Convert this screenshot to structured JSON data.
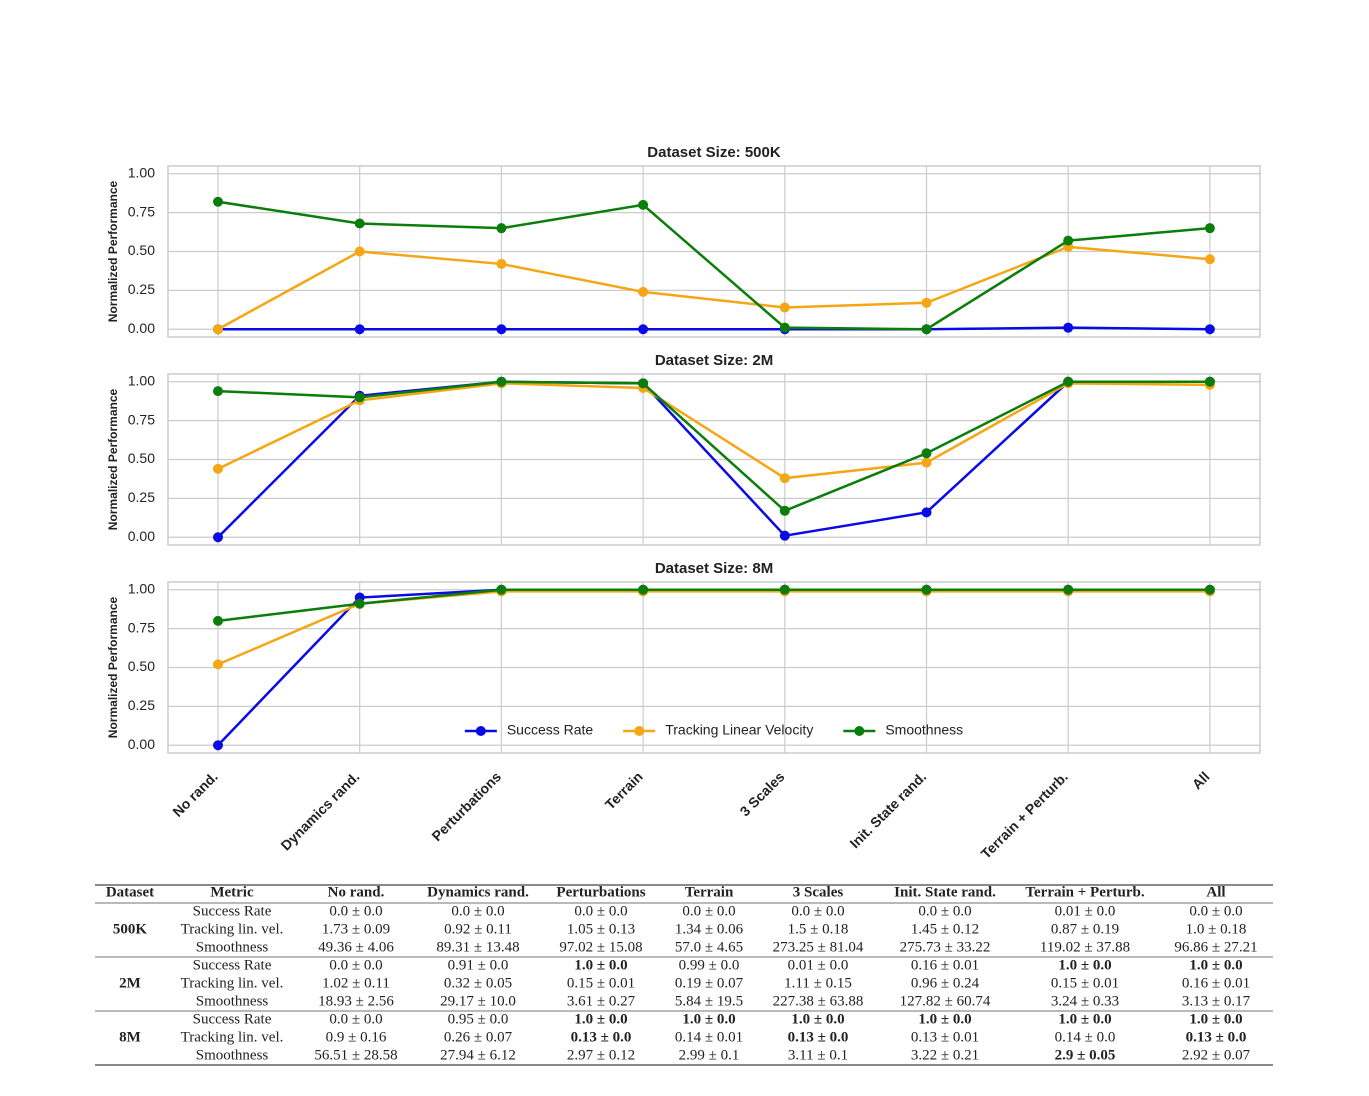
{
  "chart_data": [
    {
      "type": "line",
      "title": "Dataset Size: 500K",
      "ylabel": "Normalized Performance",
      "categories": [
        null,
        null,
        null,
        null,
        null,
        null,
        null,
        null
      ],
      "ylim": [
        -0.05,
        1.05
      ],
      "yticks": [
        {
          "value": 0,
          "label": "0.00"
        },
        {
          "value": 0.25,
          "label": "0.25"
        },
        {
          "value": 0.5,
          "label": "0.50"
        },
        {
          "value": 0.75,
          "label": "0.75"
        },
        {
          "value": 1,
          "label": "1.00"
        }
      ],
      "grid": true,
      "series": [
        {
          "name": "Success Rate",
          "color": "#0a0ae6",
          "values": [
            0,
            0,
            0,
            0,
            0,
            0,
            0.01,
            0
          ]
        },
        {
          "name": "Tracking Linear Velocity",
          "color": "#f5a614",
          "values": [
            0,
            0.5,
            0.42,
            0.24,
            0.14,
            0.17,
            0.53,
            0.45
          ]
        },
        {
          "name": "Smoothness",
          "color": "#0a7d0a",
          "values": [
            0.82,
            0.68,
            0.65,
            0.8,
            0.01,
            0,
            0.57,
            0.65
          ]
        }
      ]
    },
    {
      "type": "line",
      "title": "Dataset Size: 2M",
      "ylabel": "Normalized Performance",
      "categories": [
        null,
        null,
        null,
        null,
        null,
        null,
        null,
        null
      ],
      "ylim": [
        -0.05,
        1.05
      ],
      "yticks": [
        {
          "value": 0,
          "label": "0.00"
        },
        {
          "value": 0.25,
          "label": "0.25"
        },
        {
          "value": 0.5,
          "label": "0.50"
        },
        {
          "value": 0.75,
          "label": "0.75"
        },
        {
          "value": 1,
          "label": "1.00"
        }
      ],
      "grid": true,
      "series": [
        {
          "name": "Success Rate",
          "color": "#0a0ae6",
          "values": [
            0,
            0.91,
            1.0,
            0.99,
            0.01,
            0.16,
            1.0,
            1.0
          ]
        },
        {
          "name": "Tracking Linear Velocity",
          "color": "#f5a614",
          "values": [
            0.44,
            0.88,
            0.99,
            0.96,
            0.38,
            0.48,
            0.99,
            0.98
          ]
        },
        {
          "name": "Smoothness",
          "color": "#0a7d0a",
          "values": [
            0.94,
            0.9,
            1.0,
            0.99,
            0.17,
            0.54,
            1.0,
            1.0
          ]
        }
      ]
    },
    {
      "type": "line",
      "title": "Dataset Size: 8M",
      "ylabel": "Normalized Performance",
      "categories": [
        "No rand.",
        "Dynamics rand.",
        "Perturbations",
        "Terrain",
        "3 Scales",
        "Init. State rand.",
        "Terrain + Perturb.",
        "All"
      ],
      "ylim": [
        -0.05,
        1.05
      ],
      "yticks": [
        {
          "value": 0,
          "label": "0.00"
        },
        {
          "value": 0.25,
          "label": "0.25"
        },
        {
          "value": 0.5,
          "label": "0.50"
        },
        {
          "value": 0.75,
          "label": "0.75"
        },
        {
          "value": 1,
          "label": "1.00"
        }
      ],
      "grid": true,
      "legend": "lower center",
      "series": [
        {
          "name": "Success Rate",
          "color": "#0a0ae6",
          "values": [
            0,
            0.95,
            1.0,
            1.0,
            1.0,
            1.0,
            1.0,
            1.0
          ]
        },
        {
          "name": "Tracking Linear Velocity",
          "color": "#f5a614",
          "values": [
            0.52,
            0.91,
            0.99,
            0.99,
            0.99,
            0.99,
            0.99,
            0.99
          ]
        },
        {
          "name": "Smoothness",
          "color": "#0a7d0a",
          "values": [
            0.8,
            0.91,
            1.0,
            1.0,
            1.0,
            1.0,
            1.0,
            1.0
          ]
        }
      ]
    }
  ],
  "table": {
    "header": [
      "Dataset",
      "Metric",
      "No rand.",
      "Dynamics rand.",
      "Perturbations",
      "Terrain",
      "3 Scales",
      "Init. State rand.",
      "Terrain + Perturb.",
      "All"
    ],
    "groups": [
      {
        "dataset": "500K",
        "rows": [
          {
            "metric": "Success Rate",
            "cells": [
              "0.0 ± 0.0",
              "0.0 ± 0.0",
              "0.0 ± 0.0",
              "0.0 ± 0.0",
              "0.0 ± 0.0",
              "0.0 ± 0.0",
              "0.01 ± 0.0",
              "0.0 ± 0.0"
            ]
          },
          {
            "metric": "Tracking lin. vel.",
            "cells": [
              "1.73 ± 0.09",
              "0.92 ± 0.11",
              "1.05 ± 0.13",
              "1.34 ± 0.06",
              "1.5 ± 0.18",
              "1.45 ± 0.12",
              "0.87 ± 0.19",
              "1.0 ± 0.18"
            ]
          },
          {
            "metric": "Smoothness",
            "cells": [
              "49.36 ± 4.06",
              "89.31 ± 13.48",
              "97.02 ± 15.08",
              "57.0 ± 4.65",
              "273.25 ± 81.04",
              "275.73 ± 33.22",
              "119.02 ± 37.88",
              "96.86 ± 27.21"
            ]
          }
        ]
      },
      {
        "dataset": "2M",
        "rows": [
          {
            "metric": "Success Rate",
            "cells": [
              "0.0 ± 0.0",
              "0.91 ± 0.0",
              {
                "text": "1.0 ± 0.0",
                "bold": true
              },
              "0.99 ± 0.0",
              "0.01 ± 0.0",
              "0.16 ± 0.01",
              {
                "text": "1.0 ± 0.0",
                "bold": true
              },
              {
                "text": "1.0 ± 0.0",
                "bold": true
              }
            ]
          },
          {
            "metric": "Tracking lin. vel.",
            "cells": [
              "1.02 ± 0.11",
              "0.32 ± 0.05",
              "0.15 ± 0.01",
              "0.19 ± 0.07",
              "1.11 ± 0.15",
              "0.96 ± 0.24",
              "0.15 ± 0.01",
              "0.16 ± 0.01"
            ]
          },
          {
            "metric": "Smoothness",
            "cells": [
              "18.93 ± 2.56",
              "29.17 ± 10.0",
              "3.61 ± 0.27",
              "5.84 ± 19.5",
              "227.38 ± 63.88",
              "127.82 ± 60.74",
              "3.24 ± 0.33",
              "3.13 ± 0.17"
            ]
          }
        ]
      },
      {
        "dataset": "8M",
        "rows": [
          {
            "metric": "Success Rate",
            "cells": [
              "0.0 ± 0.0",
              "0.95 ± 0.0",
              {
                "text": "1.0 ± 0.0",
                "bold": true
              },
              {
                "text": "1.0 ± 0.0",
                "bold": true
              },
              {
                "text": "1.0 ± 0.0",
                "bold": true
              },
              {
                "text": "1.0 ± 0.0",
                "bold": true
              },
              {
                "text": "1.0 ± 0.0",
                "bold": true
              },
              {
                "text": "1.0 ± 0.0",
                "bold": true
              }
            ]
          },
          {
            "metric": "Tracking lin. vel.",
            "cells": [
              "0.9 ± 0.16",
              "0.26 ± 0.07",
              {
                "text": "0.13 ± 0.0",
                "bold": true
              },
              "0.14 ± 0.01",
              {
                "text": "0.13 ± 0.0",
                "bold": true
              },
              "0.13 ± 0.01",
              "0.14 ± 0.0",
              {
                "text": "0.13 ± 0.0",
                "bold": true
              }
            ]
          },
          {
            "metric": "Smoothness",
            "cells": [
              "56.51 ± 28.58",
              "27.94 ± 6.12",
              "2.97 ± 0.12",
              "2.99 ± 0.1",
              "3.11 ± 0.1",
              "3.22 ± 0.21",
              {
                "text": "2.9 ± 0.05",
                "bold": true
              },
              "2.92 ± 0.07"
            ]
          }
        ]
      }
    ]
  }
}
